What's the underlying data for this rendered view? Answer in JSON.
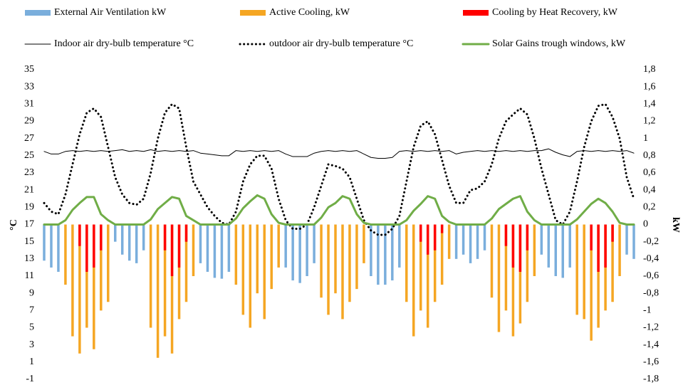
{
  "chart_data": {
    "type": "combo",
    "y_label": "°C",
    "y2_label": "kW",
    "ylim": [
      -1,
      35
    ],
    "yticks": [
      -1,
      1,
      3,
      5,
      7,
      9,
      11,
      13,
      15,
      17,
      19,
      21,
      23,
      25,
      27,
      29,
      31,
      33,
      35
    ],
    "y2lim": [
      -1.8,
      1.8
    ],
    "y2ticks": [
      {
        "value": -1.8,
        "label": "-1,8"
      },
      {
        "value": -1.6,
        "label": "-1,6"
      },
      {
        "value": -1.4,
        "label": "-1,4"
      },
      {
        "value": -1.2,
        "label": "-1,2"
      },
      -1,
      {
        "value": -0.8,
        "label": "-0,8"
      },
      {
        "value": -0.6,
        "label": "-0,6"
      },
      {
        "value": -0.4,
        "label": "-0,4"
      },
      {
        "value": -0.2,
        "label": "-0,2"
      },
      0,
      {
        "value": 0.2,
        "label": "0,2"
      },
      {
        "value": 0.4,
        "label": "0,4"
      },
      {
        "value": 0.6,
        "label": "0,6"
      },
      {
        "value": 0.8,
        "label": "0,8"
      },
      1,
      {
        "value": 1.2,
        "label": "1,2"
      },
      {
        "value": 1.4,
        "label": "1,4"
      },
      {
        "value": 1.6,
        "label": "1,6"
      },
      {
        "value": 1.8,
        "label": "1,8"
      }
    ],
    "grid": false,
    "legend": "top",
    "categories": [
      null,
      null,
      null,
      null,
      null,
      null,
      null,
      null,
      null,
      null,
      null,
      null,
      null,
      null,
      null,
      null,
      null,
      null,
      null,
      null,
      null,
      null,
      null,
      null,
      null,
      null,
      null,
      null,
      null,
      null,
      null,
      null,
      null,
      null,
      null,
      null,
      null,
      null,
      null,
      null,
      null,
      null,
      null,
      null,
      null,
      null,
      null,
      null,
      null,
      null,
      null,
      null,
      null,
      null,
      null,
      null,
      null,
      null,
      null,
      null,
      null,
      null,
      null,
      null,
      null,
      null,
      null,
      null,
      null,
      null,
      null,
      null,
      null,
      null,
      null,
      null,
      null,
      null,
      null,
      null,
      null,
      null,
      null,
      null
    ],
    "series": [
      {
        "name": "External Air Ventilation kW",
        "type": "bar",
        "axis": "y2",
        "color": "#7aaedc",
        "values": [
          -0.42,
          -0.5,
          -0.55,
          0,
          0,
          0,
          0,
          0,
          0,
          0,
          -0.2,
          -0.35,
          -0.42,
          -0.45,
          -0.3,
          0,
          0,
          0,
          0,
          0,
          0,
          0,
          -0.45,
          -0.55,
          -0.62,
          -0.63,
          -0.55,
          0,
          0,
          0,
          0,
          0,
          0,
          0,
          -0.5,
          -0.65,
          -0.68,
          -0.6,
          -0.45,
          0,
          0,
          0,
          0,
          0,
          0,
          0,
          -0.6,
          -0.7,
          -0.7,
          -0.65,
          -0.5,
          0,
          0,
          0,
          0,
          0,
          0,
          0,
          -0.4,
          -0.35,
          -0.45,
          -0.4,
          -0.3,
          0,
          0,
          0,
          0,
          0,
          0,
          0,
          -0.35,
          -0.5,
          -0.6,
          -0.62,
          -0.5,
          0,
          0,
          0,
          0,
          0,
          0,
          0,
          -0.35,
          -0.4
        ]
      },
      {
        "name": "Active Cooling, kW",
        "type": "bar",
        "axis": "y2",
        "color": "#f5a623",
        "values": [
          0,
          0,
          0,
          -0.7,
          -1.3,
          -1.5,
          -1.2,
          -1.45,
          -1,
          -0.9,
          0,
          0,
          0,
          0,
          0,
          -1.2,
          -1.55,
          -1.3,
          -1.5,
          -1.1,
          -0.9,
          -0.6,
          0,
          0,
          0,
          0,
          0,
          -0.7,
          -1.05,
          -1.2,
          -0.8,
          -1.1,
          -0.75,
          -0.5,
          0,
          0,
          0,
          0,
          0,
          -0.85,
          -1.05,
          -0.8,
          -1.1,
          -0.9,
          -0.75,
          -0.45,
          0,
          0,
          0,
          0,
          0,
          -0.9,
          -1.3,
          -1,
          -1.2,
          -0.9,
          -0.7,
          -0.4,
          0,
          0,
          0,
          0,
          0,
          -0.85,
          -1.25,
          -1,
          -1.3,
          -1.15,
          -0.9,
          -0.6,
          0,
          0,
          0,
          0,
          0,
          -1.05,
          -1.1,
          -1.35,
          -1.2,
          -1,
          -0.9,
          -0.6,
          0,
          0
        ]
      },
      {
        "name": "Cooling by Heat Recovery, kW",
        "type": "bar",
        "axis": "y2",
        "color": "#ff0000",
        "values": [
          0,
          0,
          0,
          0,
          0,
          -0.25,
          -0.55,
          -0.5,
          -0.3,
          0,
          0,
          0,
          0,
          0,
          0,
          0,
          0,
          -0.3,
          -0.6,
          -0.5,
          -0.2,
          0,
          0,
          0,
          0,
          0,
          0,
          0,
          0,
          0,
          0,
          0,
          0,
          0,
          0,
          0,
          0,
          0,
          0,
          0,
          0,
          0,
          0,
          0,
          0,
          0,
          0,
          0,
          0,
          0,
          0,
          0,
          0,
          -0.2,
          -0.35,
          -0.3,
          -0.1,
          0,
          0,
          0,
          0,
          0,
          0,
          0,
          0,
          -0.25,
          -0.5,
          -0.55,
          -0.3,
          0,
          0,
          0,
          0,
          0,
          0,
          0,
          0,
          -0.3,
          -0.55,
          -0.5,
          -0.2,
          0,
          0,
          0
        ]
      },
      {
        "name": "Indoor air dry-bulb temperature °C",
        "type": "line",
        "line_style": "solid",
        "color": "#000000",
        "values": [
          25.5,
          25.2,
          25.2,
          25.5,
          25.6,
          25.5,
          25.6,
          25.5,
          25.6,
          25.5,
          25.6,
          25.7,
          25.5,
          25.6,
          25.5,
          25.7,
          25.5,
          25.6,
          25.5,
          25.6,
          25.5,
          25.6,
          25.3,
          25.2,
          25.1,
          25,
          25,
          25.6,
          25.5,
          25.6,
          25.5,
          25.6,
          25.5,
          25.6,
          25.2,
          24.9,
          24.9,
          24.9,
          25.3,
          25.5,
          25.6,
          25.5,
          25.6,
          25.5,
          25.6,
          25.2,
          24.8,
          24.7,
          24.7,
          24.8,
          25.5,
          25.6,
          25.5,
          25.6,
          25.5,
          25.6,
          25.5,
          25.6,
          25.2,
          25.4,
          25.5,
          25.6,
          25.5,
          25.6,
          25.5,
          25.6,
          25.5,
          25.6,
          25.5,
          25.6,
          25.6,
          25.8,
          25.4,
          25.1,
          24.9,
          25.5,
          25.6,
          25.5,
          25.6,
          25.5,
          25.6,
          25.5,
          25.6,
          25.3
        ]
      },
      {
        "name": "outdoor air dry-bulb temperature °C",
        "type": "line",
        "line_style": "dotted",
        "color": "#000000",
        "values": [
          19.5,
          18.5,
          18.2,
          20.5,
          24,
          27.5,
          30,
          30.5,
          29.5,
          26,
          22.5,
          20.5,
          19.5,
          19.3,
          20,
          23,
          27,
          30,
          31,
          30.5,
          26,
          22,
          20.5,
          19,
          18,
          17.2,
          17,
          18.5,
          22,
          24,
          25,
          25,
          23.5,
          20,
          17.5,
          16.5,
          16.5,
          17,
          19,
          21.5,
          24,
          23.8,
          23.5,
          22.5,
          20,
          17.5,
          16.3,
          15.8,
          15.8,
          16.5,
          18,
          22,
          26,
          28.5,
          29,
          27.5,
          24.5,
          21.5,
          19.5,
          19.5,
          21,
          21.2,
          22,
          24,
          27,
          29,
          29.8,
          30.5,
          29.8,
          27,
          23.5,
          20.5,
          17.5,
          17,
          18.5,
          22,
          26,
          29,
          30.8,
          31,
          29.5,
          27,
          22.5,
          20
        ]
      },
      {
        "name": "Solar Gains trough windows, kW",
        "type": "line",
        "line_style": "solid",
        "axis": "y2",
        "color": "#70ad47",
        "values": [
          0,
          0,
          0,
          0.05,
          0.17,
          0.25,
          0.32,
          0.32,
          0.12,
          0.05,
          0,
          0,
          0,
          0,
          0,
          0.06,
          0.18,
          0.25,
          0.32,
          0.3,
          0.1,
          0.05,
          0,
          0,
          0,
          0,
          0,
          0.07,
          0.19,
          0.27,
          0.34,
          0.3,
          0.12,
          0.02,
          0,
          0,
          0,
          0,
          0,
          0.08,
          0.2,
          0.25,
          0.33,
          0.3,
          0.12,
          0.02,
          0,
          0,
          0,
          0,
          0,
          0.05,
          0.16,
          0.24,
          0.33,
          0.3,
          0.1,
          0.03,
          0,
          0,
          0,
          0,
          0,
          0.07,
          0.18,
          0.24,
          0.3,
          0.33,
          0.15,
          0.05,
          0,
          0,
          0,
          0,
          0,
          0.06,
          0.15,
          0.24,
          0.3,
          0.25,
          0.15,
          0.02,
          0,
          0
        ]
      }
    ]
  }
}
